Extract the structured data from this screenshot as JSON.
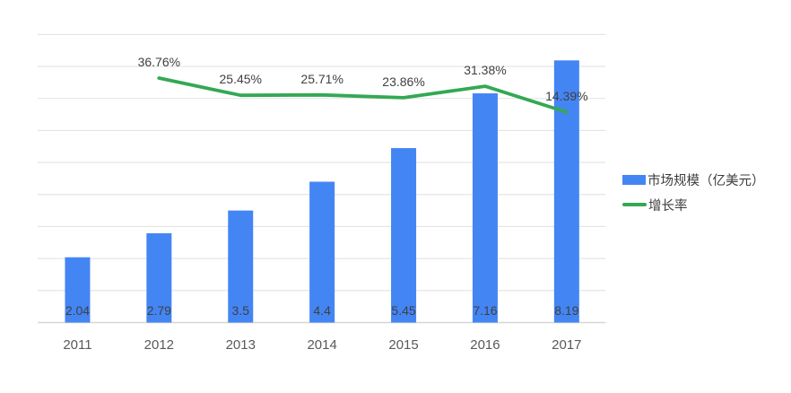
{
  "chart_data": {
    "type": "combo",
    "title": "",
    "xlabel": "",
    "ylabel": "",
    "categories": [
      "2011",
      "2012",
      "2013",
      "2014",
      "2015",
      "2016",
      "2017"
    ],
    "series": [
      {
        "name": "市场规模（亿美元）",
        "type": "bar",
        "color": "#4485F4",
        "values": [
          2.04,
          2.79,
          3.5,
          4.4,
          5.45,
          7.16,
          8.19
        ],
        "labels": [
          "2.04",
          "2.79",
          "3.5",
          "4.4",
          "5.45",
          "7.16",
          "8.19"
        ]
      },
      {
        "name": "增长率",
        "type": "line",
        "color": "#34A853",
        "values": [
          null,
          36.76,
          25.45,
          25.71,
          23.86,
          31.38,
          14.39
        ],
        "labels": [
          "",
          "36.76%",
          "25.45%",
          "25.71%",
          "23.86%",
          "31.38%",
          "14.39%"
        ]
      }
    ],
    "ylim": [
      0,
      9
    ],
    "y_axis_labels_visible": false,
    "gridlines": {
      "count": 10,
      "color": "#e3e3e3",
      "on": true
    },
    "axis_line_color": "#d6d6d6",
    "background": "#ffffff",
    "value_label_color": "#404040",
    "tick_label_color": "#595959",
    "legend_position": "right"
  }
}
